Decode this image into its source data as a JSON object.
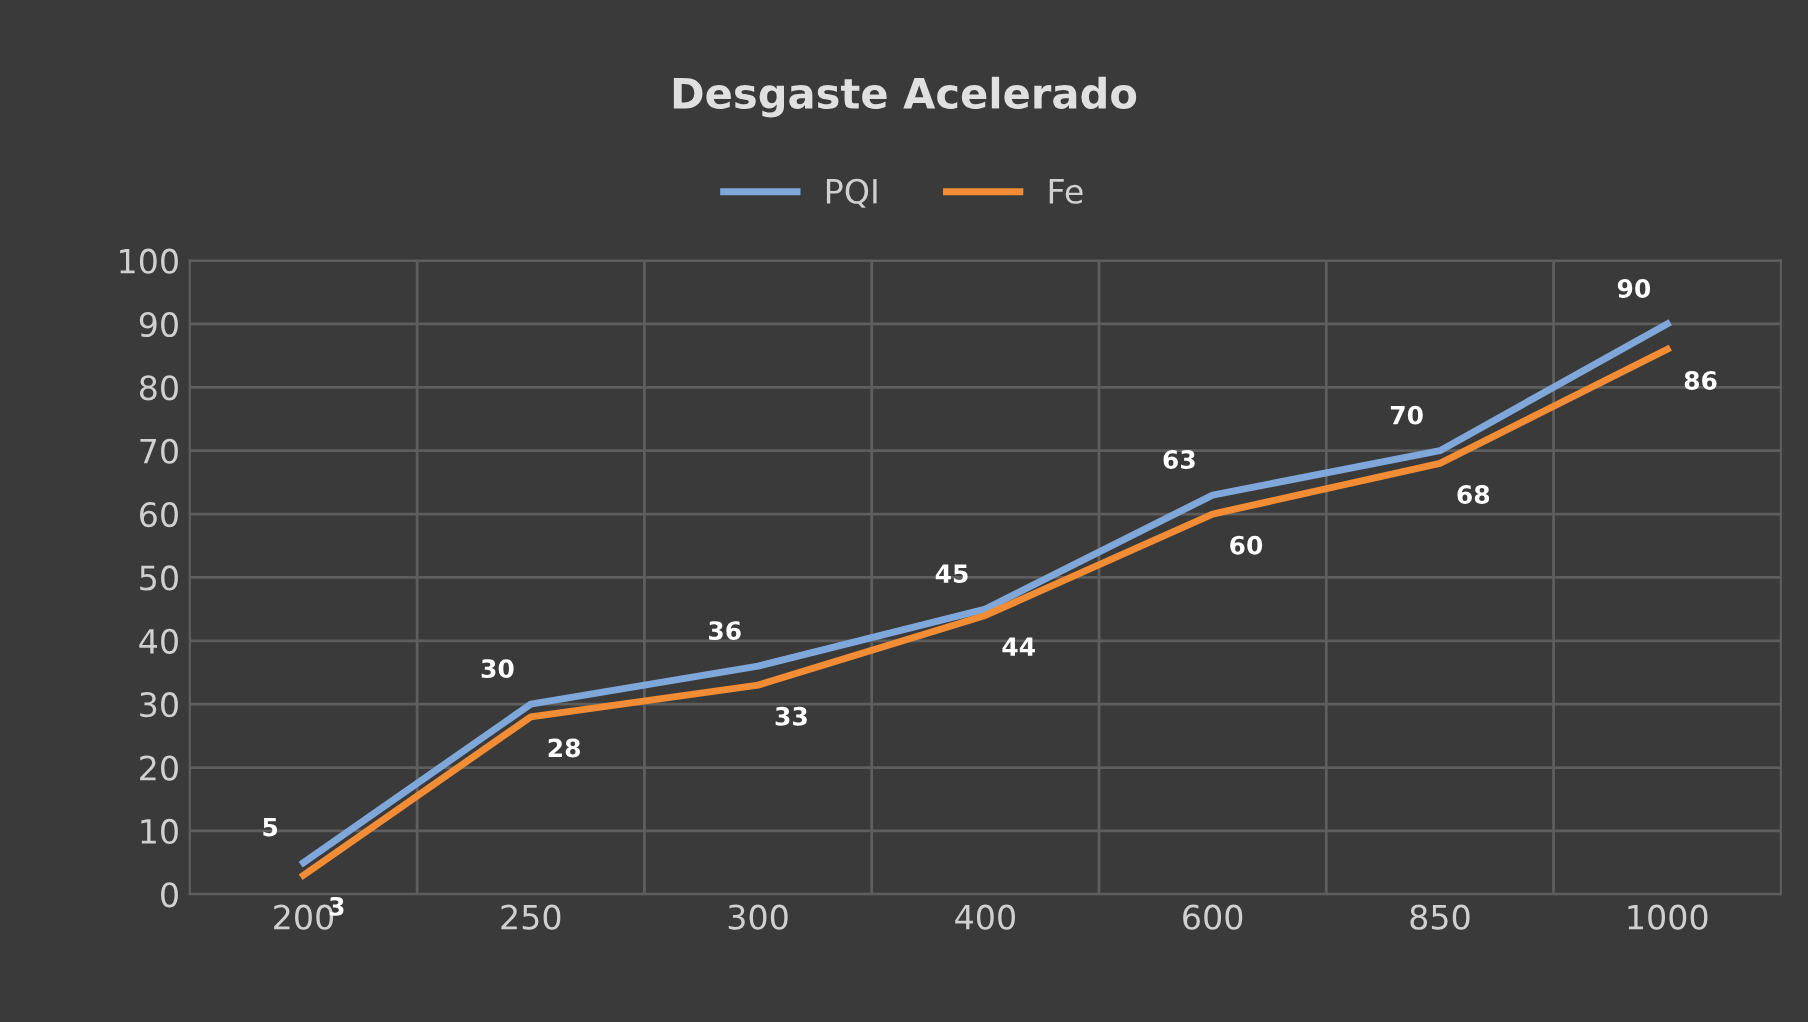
{
  "chart_data": {
    "type": "line",
    "title": "Desgaste Acelerado",
    "categories": [
      "200",
      "250",
      "300",
      "400",
      "600",
      "850",
      "1000"
    ],
    "series": [
      {
        "name": "PQI",
        "color": "#7fa7d9",
        "values": [
          5,
          30,
          36,
          45,
          63,
          70,
          90
        ]
      },
      {
        "name": "Fe",
        "color": "#f28c35",
        "values": [
          3,
          28,
          33,
          44,
          60,
          68,
          86
        ]
      }
    ],
    "ylim": [
      0,
      100
    ],
    "yticks": [
      0,
      10,
      20,
      30,
      40,
      50,
      60,
      70,
      80,
      90,
      100
    ],
    "grid": true,
    "legend": "top",
    "data_labels": true,
    "marker": "none",
    "line_style": "solid"
  }
}
